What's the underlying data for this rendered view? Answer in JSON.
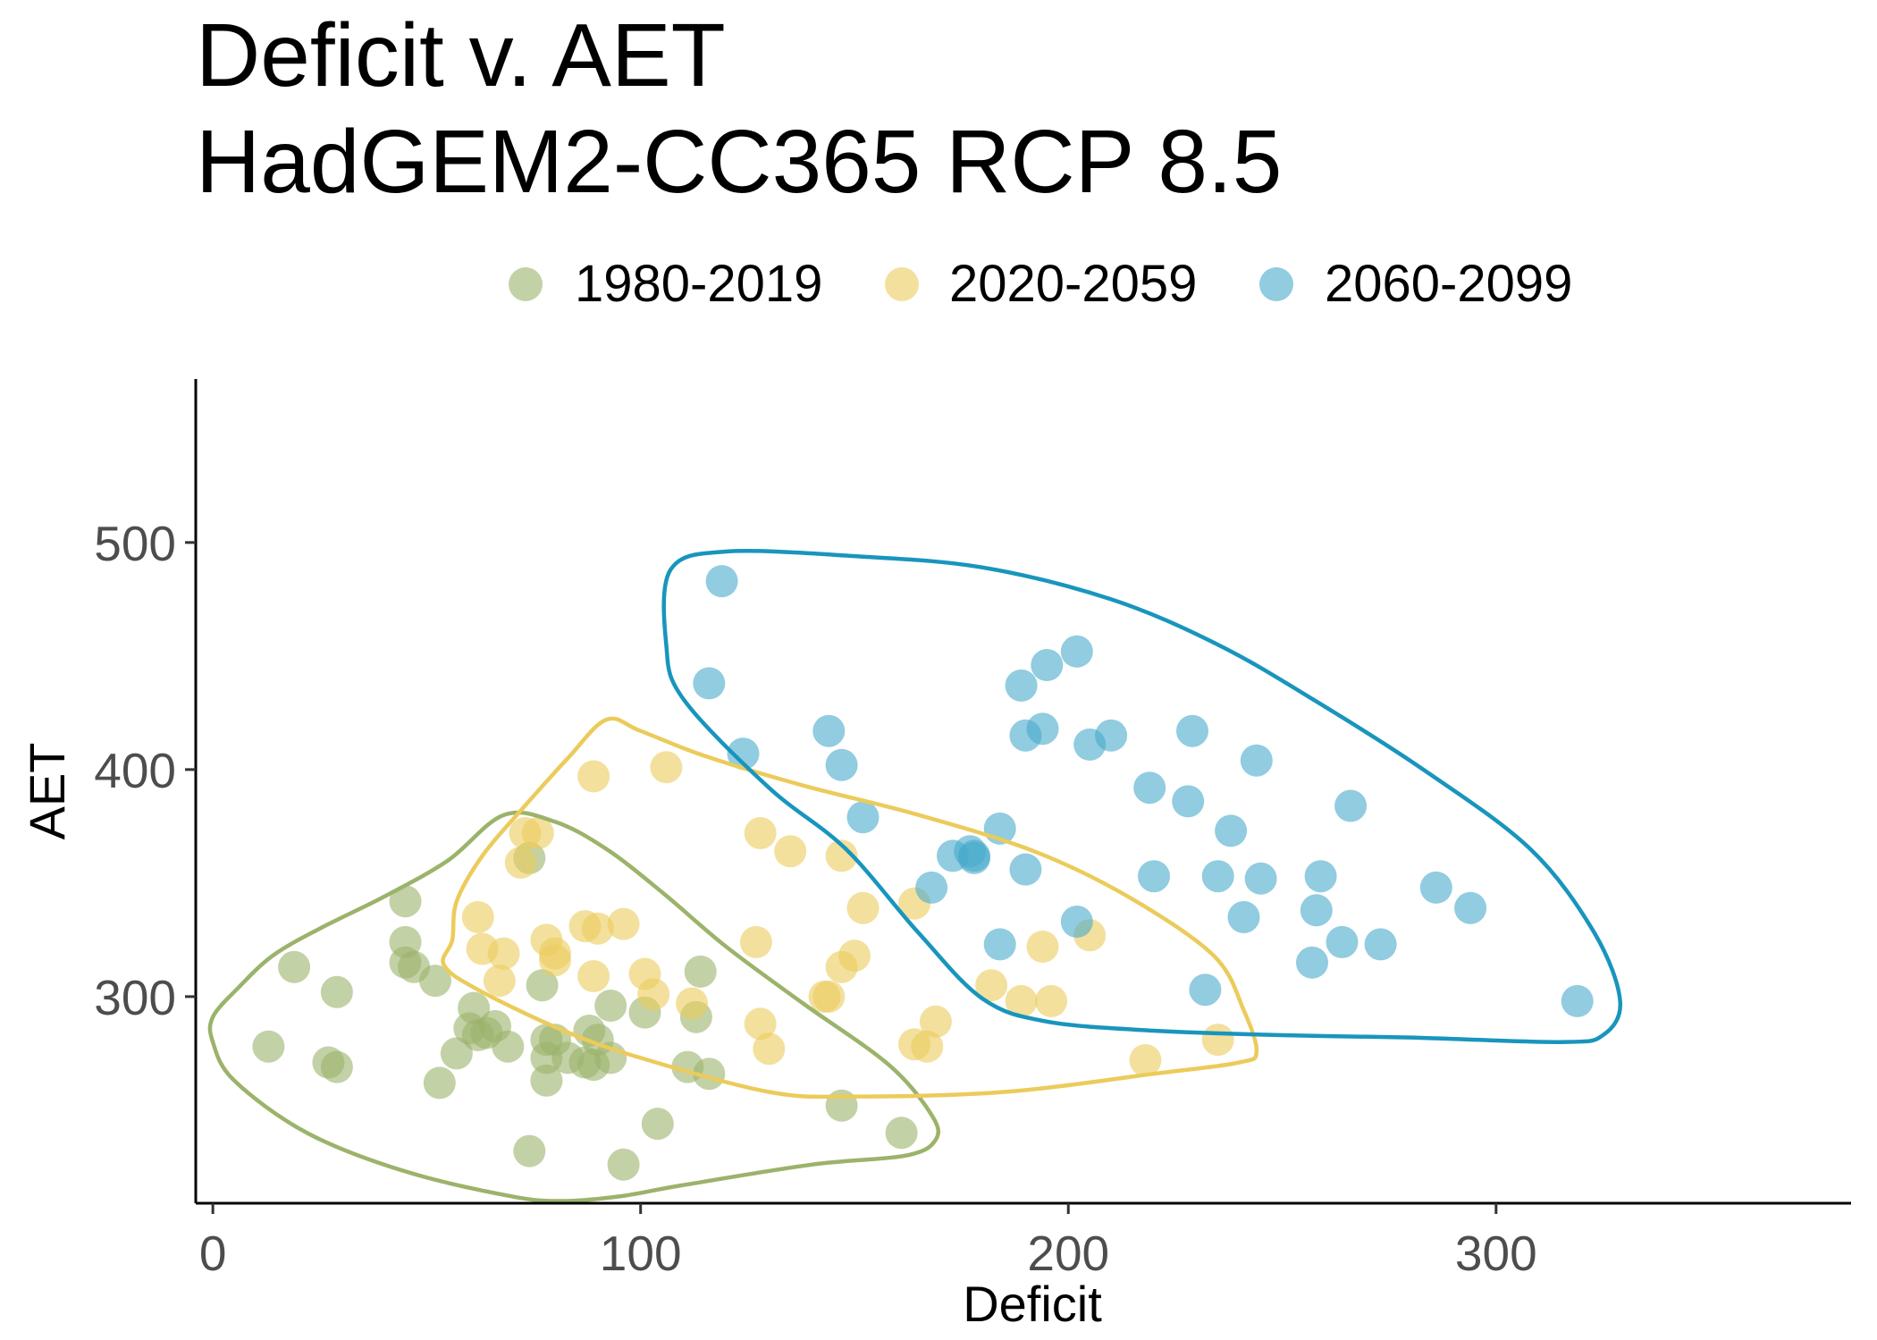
{
  "chart_data": {
    "type": "scatter",
    "title": "Deficit v. AET",
    "subtitle": "HadGEM2-CC365 RCP 8.5",
    "xlabel": "Deficit",
    "ylabel": "AET",
    "xlim": [
      -4,
      383
    ],
    "ylim": [
      209,
      572
    ],
    "x_ticks": [
      0,
      100,
      200,
      300
    ],
    "y_ticks": [
      300,
      400,
      500
    ],
    "grid": false,
    "legend_position": "top",
    "series": [
      {
        "name": "1980-2019",
        "color": "#9BB36A",
        "points": [
          [
            13,
            278
          ],
          [
            19,
            313
          ],
          [
            27,
            271
          ],
          [
            29,
            269
          ],
          [
            29,
            302
          ],
          [
            45,
            342
          ],
          [
            45,
            324
          ],
          [
            45,
            315
          ],
          [
            47,
            313
          ],
          [
            53,
            262
          ],
          [
            52,
            307
          ],
          [
            57,
            275
          ],
          [
            60,
            286
          ],
          [
            61,
            295
          ],
          [
            62,
            283
          ],
          [
            64,
            284
          ],
          [
            66,
            287
          ],
          [
            69,
            278
          ],
          [
            74,
            232
          ],
          [
            74,
            361
          ],
          [
            77,
            305
          ],
          [
            78,
            273
          ],
          [
            78,
            281
          ],
          [
            78,
            263
          ],
          [
            80,
            281
          ],
          [
            83,
            273
          ],
          [
            87,
            271
          ],
          [
            88,
            285
          ],
          [
            89,
            270
          ],
          [
            90,
            281
          ],
          [
            93,
            296
          ],
          [
            93,
            273
          ],
          [
            96,
            226
          ],
          [
            101,
            293
          ],
          [
            104,
            244
          ],
          [
            111,
            269
          ],
          [
            113,
            291
          ],
          [
            114,
            311
          ],
          [
            116,
            266
          ],
          [
            161,
            240
          ],
          [
            147,
            252
          ]
        ]
      },
      {
        "name": "2020-2059",
        "color": "#EBCB5B",
        "points": [
          [
            62,
            335
          ],
          [
            63,
            321
          ],
          [
            67,
            307
          ],
          [
            68,
            319
          ],
          [
            72,
            359
          ],
          [
            73,
            372
          ],
          [
            76,
            372
          ],
          [
            78,
            325
          ],
          [
            80,
            316
          ],
          [
            80,
            319
          ],
          [
            87,
            331
          ],
          [
            89,
            309
          ],
          [
            89,
            397
          ],
          [
            90,
            330
          ],
          [
            96,
            332
          ],
          [
            101,
            310
          ],
          [
            103,
            301
          ],
          [
            106,
            401
          ],
          [
            112,
            297
          ],
          [
            127,
            324
          ],
          [
            128,
            372
          ],
          [
            128,
            288
          ],
          [
            130,
            277
          ],
          [
            135,
            364
          ],
          [
            143,
            300
          ],
          [
            144,
            300
          ],
          [
            147,
            362
          ],
          [
            147,
            313
          ],
          [
            150,
            318
          ],
          [
            152,
            339
          ],
          [
            164,
            341
          ],
          [
            164,
            279
          ],
          [
            167,
            278
          ],
          [
            169,
            289
          ],
          [
            182,
            305
          ],
          [
            189,
            298
          ],
          [
            194,
            322
          ],
          [
            196,
            298
          ],
          [
            205,
            327
          ],
          [
            218,
            272
          ],
          [
            235,
            281
          ]
        ]
      },
      {
        "name": "2060-2099",
        "color": "#47AACC",
        "points": [
          [
            116,
            438
          ],
          [
            119,
            483
          ],
          [
            124,
            407
          ],
          [
            144,
            417
          ],
          [
            147,
            402
          ],
          [
            152,
            379
          ],
          [
            168,
            348
          ],
          [
            173,
            362
          ],
          [
            177,
            364
          ],
          [
            178,
            362
          ],
          [
            178,
            361
          ],
          [
            184,
            323
          ],
          [
            184,
            374
          ],
          [
            189,
            437
          ],
          [
            190,
            356
          ],
          [
            190,
            415
          ],
          [
            194,
            418
          ],
          [
            195,
            446
          ],
          [
            202,
            333
          ],
          [
            202,
            452
          ],
          [
            205,
            411
          ],
          [
            210,
            415
          ],
          [
            219,
            392
          ],
          [
            220,
            353
          ],
          [
            228,
            386
          ],
          [
            229,
            417
          ],
          [
            232,
            303
          ],
          [
            235,
            353
          ],
          [
            238,
            373
          ],
          [
            241,
            335
          ],
          [
            244,
            404
          ],
          [
            245,
            352
          ],
          [
            257,
            315
          ],
          [
            258,
            338
          ],
          [
            259,
            353
          ],
          [
            264,
            324
          ],
          [
            266,
            384
          ],
          [
            273,
            323
          ],
          [
            286,
            348
          ],
          [
            294,
            339
          ],
          [
            319,
            298
          ]
        ]
      }
    ],
    "outlines": [
      {
        "name": "1980-2019",
        "color": "#9BB36A",
        "path": [
          [
            0,
            291
          ],
          [
            6,
            304
          ],
          [
            14,
            318
          ],
          [
            25,
            330
          ],
          [
            40,
            344
          ],
          [
            55,
            360
          ],
          [
            68,
            380
          ],
          [
            80,
            377
          ],
          [
            92,
            365
          ],
          [
            105,
            346
          ],
          [
            120,
            322
          ],
          [
            138,
            297
          ],
          [
            158,
            270
          ],
          [
            168,
            248
          ],
          [
            169,
            237
          ],
          [
            162,
            230
          ],
          [
            140,
            226
          ],
          [
            110,
            217
          ],
          [
            95,
            212
          ],
          [
            82,
            210
          ],
          [
            70,
            212
          ],
          [
            45,
            223
          ],
          [
            22,
            240
          ],
          [
            5,
            263
          ],
          [
            0,
            280
          ]
        ]
      },
      {
        "name": "2020-2059",
        "color": "#EBCB5B",
        "path": [
          [
            56,
            325
          ],
          [
            57,
            342
          ],
          [
            63,
            362
          ],
          [
            72,
            382
          ],
          [
            83,
            405
          ],
          [
            92,
            422
          ],
          [
            100,
            417
          ],
          [
            115,
            406
          ],
          [
            138,
            393
          ],
          [
            165,
            380
          ],
          [
            192,
            364
          ],
          [
            214,
            344
          ],
          [
            234,
            318
          ],
          [
            241,
            294
          ],
          [
            244,
            276
          ],
          [
            240,
            271
          ],
          [
            220,
            266
          ],
          [
            185,
            258
          ],
          [
            150,
            256
          ],
          [
            130,
            258
          ],
          [
            100,
            273
          ],
          [
            82,
            285
          ],
          [
            62,
            303
          ],
          [
            54,
            314
          ]
        ]
      },
      {
        "name": "2060-2099",
        "color": "#1995BD",
        "path": [
          [
            107,
            488
          ],
          [
            120,
            496
          ],
          [
            150,
            494
          ],
          [
            180,
            489
          ],
          [
            210,
            475
          ],
          [
            235,
            455
          ],
          [
            258,
            430
          ],
          [
            283,
            400
          ],
          [
            308,
            365
          ],
          [
            323,
            328
          ],
          [
            329,
            298
          ],
          [
            325,
            283
          ],
          [
            315,
            280
          ],
          [
            280,
            282
          ],
          [
            250,
            283
          ],
          [
            220,
            285
          ],
          [
            195,
            289
          ],
          [
            180,
            299
          ],
          [
            165,
            328
          ],
          [
            148,
            365
          ],
          [
            130,
            392
          ],
          [
            110,
            431
          ],
          [
            106,
            455
          ]
        ]
      }
    ]
  }
}
